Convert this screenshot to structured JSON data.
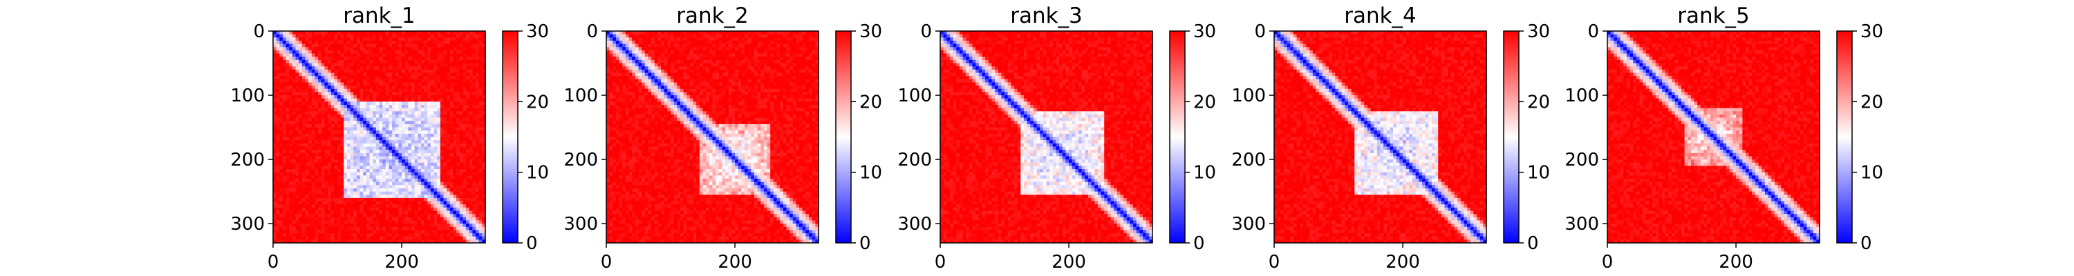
{
  "chart_data": [
    {
      "type": "heatmap",
      "title": "rank_1",
      "x_ticks": [
        0,
        200
      ],
      "y_ticks": [
        0,
        100,
        200,
        300
      ],
      "xlim": [
        0,
        330
      ],
      "ylim": [
        330,
        0
      ],
      "colorbar": {
        "ticks": [
          0,
          10,
          20,
          30
        ],
        "range": [
          0,
          30
        ],
        "colormap": "bwr"
      },
      "pattern": {
        "diagonal_value": 0,
        "background_value": 30,
        "domain_center": [
          185,
          185
        ],
        "domain_halfwidth": [
          75,
          75
        ],
        "domain_value": 9,
        "domain_strength": 1.0
      }
    },
    {
      "type": "heatmap",
      "title": "rank_2",
      "x_ticks": [
        0,
        200
      ],
      "y_ticks": [
        0,
        100,
        200,
        300
      ],
      "xlim": [
        0,
        330
      ],
      "ylim": [
        330,
        0
      ],
      "colorbar": {
        "ticks": [
          0,
          10,
          20,
          30
        ],
        "range": [
          0,
          30
        ],
        "colormap": "bwr"
      },
      "pattern": {
        "diagonal_value": 0,
        "background_value": 30,
        "domain_center": [
          200,
          200
        ],
        "domain_halfwidth": [
          55,
          55
        ],
        "domain_value": 12,
        "domain_strength": 0.7
      }
    },
    {
      "type": "heatmap",
      "title": "rank_3",
      "x_ticks": [
        0,
        200
      ],
      "y_ticks": [
        0,
        100,
        200,
        300
      ],
      "xlim": [
        0,
        330
      ],
      "ylim": [
        330,
        0
      ],
      "colorbar": {
        "ticks": [
          0,
          10,
          20,
          30
        ],
        "range": [
          0,
          30
        ],
        "colormap": "bwr"
      },
      "pattern": {
        "diagonal_value": 0,
        "background_value": 30,
        "domain_center": [
          190,
          190
        ],
        "domain_halfwidth": [
          65,
          65
        ],
        "domain_value": 10,
        "domain_strength": 0.85
      }
    },
    {
      "type": "heatmap",
      "title": "rank_4",
      "x_ticks": [
        0,
        200
      ],
      "y_ticks": [
        0,
        100,
        200,
        300
      ],
      "xlim": [
        0,
        330
      ],
      "ylim": [
        330,
        0
      ],
      "colorbar": {
        "ticks": [
          0,
          10,
          20,
          30
        ],
        "range": [
          0,
          30
        ],
        "colormap": "bwr"
      },
      "pattern": {
        "diagonal_value": 0,
        "background_value": 30,
        "domain_center": [
          190,
          190
        ],
        "domain_halfwidth": [
          65,
          65
        ],
        "domain_value": 10,
        "domain_strength": 0.9
      }
    },
    {
      "type": "heatmap",
      "title": "rank_5",
      "x_ticks": [
        0,
        200
      ],
      "y_ticks": [
        0,
        100,
        200,
        300
      ],
      "xlim": [
        0,
        330
      ],
      "ylim": [
        330,
        0
      ],
      "colorbar": {
        "ticks": [
          0,
          10,
          20,
          30
        ],
        "range": [
          0,
          30
        ],
        "colormap": "bwr"
      },
      "pattern": {
        "diagonal_value": 0,
        "background_value": 30,
        "domain_center": [
          165,
          165
        ],
        "domain_halfwidth": [
          45,
          45
        ],
        "domain_value": 13,
        "domain_strength": 0.6
      }
    }
  ]
}
